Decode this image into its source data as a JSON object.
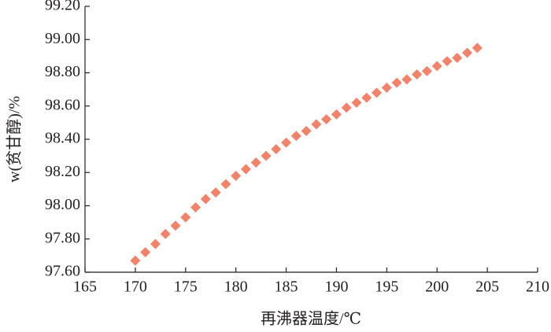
{
  "chart_data": {
    "type": "scatter",
    "x_label": "再沸器温度/℃",
    "y_label": "w(贫甘醇)/%",
    "color": "#f0836a",
    "x": [
      170,
      171,
      172,
      173,
      174,
      175,
      176,
      177,
      178,
      179,
      180,
      181,
      182,
      183,
      184,
      185,
      186,
      187,
      188,
      189,
      190,
      191,
      192,
      193,
      194,
      195,
      196,
      197,
      198,
      199,
      200,
      201,
      202,
      203,
      204
    ],
    "values": [
      97.67,
      97.72,
      97.77,
      97.83,
      97.88,
      97.93,
      97.99,
      98.04,
      98.08,
      98.13,
      98.18,
      98.22,
      98.26,
      98.3,
      98.34,
      98.38,
      98.42,
      98.45,
      98.49,
      98.52,
      98.55,
      98.59,
      98.62,
      98.65,
      98.68,
      98.71,
      98.74,
      98.76,
      98.79,
      98.81,
      98.84,
      98.87,
      98.89,
      98.92,
      98.95
    ],
    "xlim": [
      165,
      210
    ],
    "xticks": [
      165,
      170,
      175,
      180,
      185,
      190,
      195,
      200,
      205,
      210
    ],
    "ylim": [
      97.6,
      99.2
    ],
    "yticks": [
      {
        "value": 97.6,
        "label": "97.60"
      },
      {
        "value": 97.8,
        "label": "97.80"
      },
      {
        "value": 98.0,
        "label": "98.00"
      },
      {
        "value": 98.2,
        "label": "98.20"
      },
      {
        "value": 98.4,
        "label": "98.40"
      },
      {
        "value": 98.6,
        "label": "98.60"
      },
      {
        "value": 98.8,
        "label": "98.80"
      },
      {
        "value": 99.0,
        "label": "99.00"
      },
      {
        "value": 99.2,
        "label": "99.20"
      }
    ]
  }
}
